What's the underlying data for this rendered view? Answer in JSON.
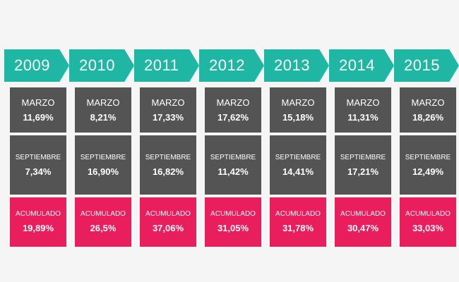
{
  "chart_data": {
    "type": "table",
    "row_labels": {
      "marzo": "MARZO",
      "septiembre": "SEPTIEMBRE",
      "acumulado": "ACUMULADO"
    },
    "columns": [
      {
        "year": "2009",
        "marzo": "11,69%",
        "septiembre": "7,34%",
        "acumulado": "19,89%"
      },
      {
        "year": "2010",
        "marzo": "8,21%",
        "septiembre": "16,90%",
        "acumulado": "26,5%"
      },
      {
        "year": "2011",
        "marzo": "17,33%",
        "septiembre": "16,82%",
        "acumulado": "37,06%"
      },
      {
        "year": "2012",
        "marzo": "17,62%",
        "septiembre": "11,42%",
        "acumulado": "31,05%"
      },
      {
        "year": "2013",
        "marzo": "15,18%",
        "septiembre": "14,41%",
        "acumulado": "31,78%"
      },
      {
        "year": "2014",
        "marzo": "11,31%",
        "septiembre": "17,21%",
        "acumulado": "30,47%"
      },
      {
        "year": "2015",
        "marzo": "18,26%",
        "septiembre": "12,49%",
        "acumulado": "33,03%"
      }
    ]
  },
  "colors": {
    "year_arrow": "#1fb6a3",
    "period_box": "#545454",
    "accumulated_box": "#e91e5c",
    "background": "#f5f5f5"
  }
}
